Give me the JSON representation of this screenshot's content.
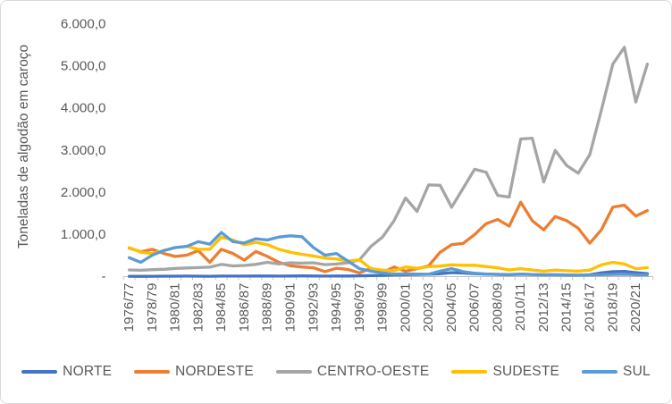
{
  "figure": {
    "background": "#FFFFFF",
    "border_color": "#D9D9D9"
  },
  "chart_data": {
    "type": "line",
    "title": "",
    "ylabel": "Toneladas de algodão em caroço",
    "xlabel": "",
    "grid": false,
    "legend_position": "bottom",
    "text_color": "#595959",
    "axis_color": "#BFBFBF",
    "y_axis": {
      "min": 0,
      "max": 6000,
      "step": 1000,
      "tick_labels": [
        "-",
        "1.000,0",
        "2.000,0",
        "3.000,0",
        "4.000,0",
        "5.000,0",
        "6.000,0"
      ]
    },
    "x_axis": {
      "categories": [
        "1976/77",
        "1977/78",
        "1978/79",
        "1979/80",
        "1980/81",
        "1981/82",
        "1982/83",
        "1983/84",
        "1984/85",
        "1985/86",
        "1986/87",
        "1987/88",
        "1988/89",
        "1989/90",
        "1990/91",
        "1991/92",
        "1992/93",
        "1993/94",
        "1994/95",
        "1995/96",
        "1996/97",
        "1997/98",
        "1998/99",
        "1999/00",
        "2000/01",
        "2001/02",
        "2002/03",
        "2003/04",
        "2004/05",
        "2005/06",
        "2006/07",
        "2007/08",
        "2008/09",
        "2009/10",
        "2010/11",
        "2011/12",
        "2012/13",
        "2013/14",
        "2014/15",
        "2015/16",
        "2016/17",
        "2017/18",
        "2018/19",
        "2019/20",
        "2020/21",
        "2021/22"
      ],
      "shown_tick_labels": [
        "1976/77",
        "1978/79",
        "1980/81",
        "1982/83",
        "1984/85",
        "1986/87",
        "1988/89",
        "1990/91",
        "1992/93",
        "1994/95",
        "1996/97",
        "1998/99",
        "2000/01",
        "2002/03",
        "2004/05",
        "2006/07",
        "2008/09",
        "2010/11",
        "2012/13",
        "2014/15",
        "2016/17",
        "2018/19",
        "2020/21"
      ]
    },
    "series": [
      {
        "name": "NORTE",
        "color": "#4472C4",
        "values": [
          8,
          6,
          8,
          10,
          10,
          12,
          10,
          8,
          12,
          12,
          12,
          14,
          14,
          12,
          15,
          16,
          14,
          12,
          15,
          15,
          20,
          25,
          30,
          40,
          45,
          50,
          55,
          70,
          95,
          85,
          70,
          60,
          50,
          45,
          55,
          50,
          45,
          45,
          40,
          35,
          45,
          90,
          120,
          125,
          95,
          70
        ]
      },
      {
        "name": "NORDESTE",
        "color": "#ED7D31",
        "values": [
          680,
          590,
          650,
          550,
          480,
          510,
          620,
          340,
          650,
          550,
          390,
          600,
          480,
          340,
          260,
          230,
          210,
          120,
          200,
          170,
          90,
          200,
          100,
          230,
          130,
          190,
          255,
          580,
          760,
          790,
          1000,
          1260,
          1360,
          1200,
          1770,
          1330,
          1110,
          1430,
          1330,
          1150,
          795,
          1110,
          1650,
          1700,
          1440,
          1570
        ]
      },
      {
        "name": "CENTRO-OESTE",
        "color": "#A5A5A5",
        "values": [
          160,
          150,
          165,
          175,
          195,
          205,
          215,
          225,
          290,
          255,
          265,
          290,
          340,
          300,
          330,
          320,
          330,
          285,
          300,
          330,
          400,
          720,
          940,
          1330,
          1870,
          1550,
          2180,
          2170,
          1650,
          2100,
          2550,
          2480,
          1930,
          1890,
          3270,
          3290,
          2250,
          3000,
          2640,
          2460,
          2900,
          3950,
          5050,
          5450,
          4150,
          5050
        ]
      },
      {
        "name": "SUDESTE",
        "color": "#FFC000",
        "values": [
          690,
          580,
          550,
          620,
          690,
          720,
          650,
          650,
          940,
          870,
          760,
          815,
          760,
          650,
          580,
          530,
          490,
          440,
          420,
          370,
          400,
          190,
          155,
          140,
          230,
          200,
          235,
          250,
          280,
          270,
          270,
          240,
          210,
          160,
          190,
          160,
          130,
          155,
          140,
          130,
          155,
          280,
          340,
          300,
          190,
          215
        ]
      },
      {
        "name": "SUL",
        "color": "#5B9BD5",
        "values": [
          450,
          340,
          510,
          620,
          690,
          720,
          830,
          770,
          1050,
          830,
          800,
          900,
          870,
          940,
          970,
          950,
          690,
          510,
          550,
          370,
          190,
          130,
          85,
          60,
          65,
          60,
          55,
          130,
          190,
          120,
          80,
          60,
          55,
          50,
          60,
          50,
          40,
          45,
          40,
          35,
          40,
          45,
          50,
          55,
          45,
          40
        ]
      }
    ]
  }
}
